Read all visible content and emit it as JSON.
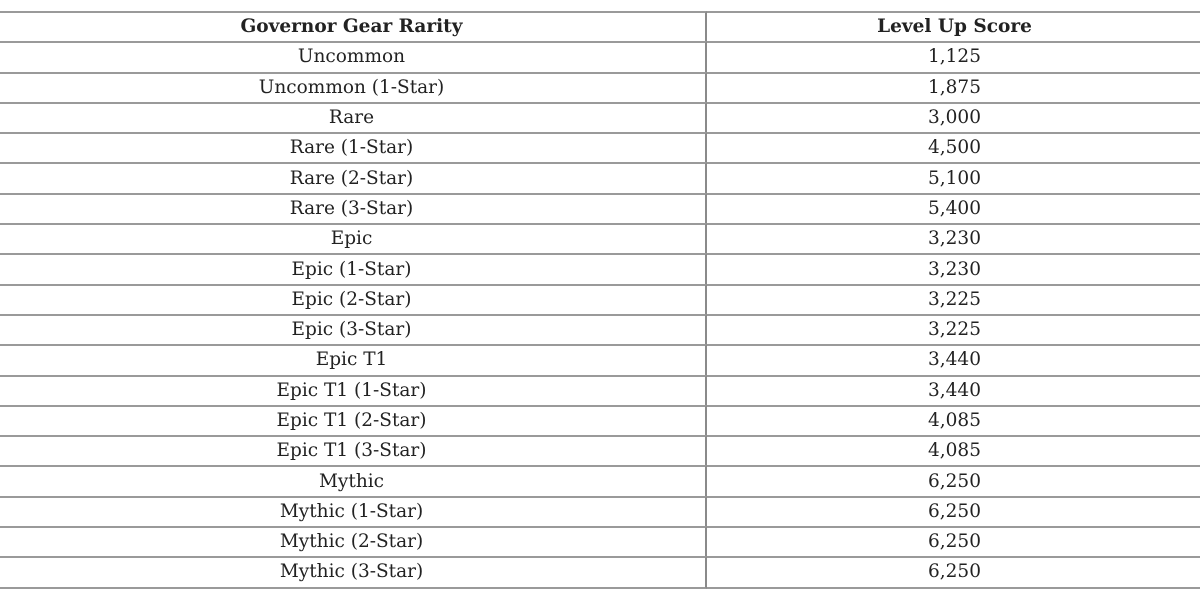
{
  "table": {
    "headers": [
      "Governor Gear Rarity",
      "Level Up Score"
    ],
    "rows": [
      [
        "Uncommon",
        "1,125"
      ],
      [
        "Uncommon (1-Star)",
        "1,875"
      ],
      [
        "Rare",
        "3,000"
      ],
      [
        "Rare (1-Star)",
        "4,500"
      ],
      [
        "Rare (2-Star)",
        "5,100"
      ],
      [
        "Rare (3-Star)",
        "5,400"
      ],
      [
        "Epic",
        "3,230"
      ],
      [
        "Epic (1-Star)",
        "3,230"
      ],
      [
        "Epic (2-Star)",
        "3,225"
      ],
      [
        "Epic (3-Star)",
        "3,225"
      ],
      [
        "Epic T1",
        "3,440"
      ],
      [
        "Epic T1 (1-Star)",
        "3,440"
      ],
      [
        "Epic T1 (2-Star)",
        "4,085"
      ],
      [
        "Epic T1 (3-Star)",
        "4,085"
      ],
      [
        "Mythic",
        "6,250"
      ],
      [
        "Mythic (1-Star)",
        "6,250"
      ],
      [
        "Mythic (2-Star)",
        "6,250"
      ],
      [
        "Mythic (3-Star)",
        "6,250"
      ]
    ]
  }
}
